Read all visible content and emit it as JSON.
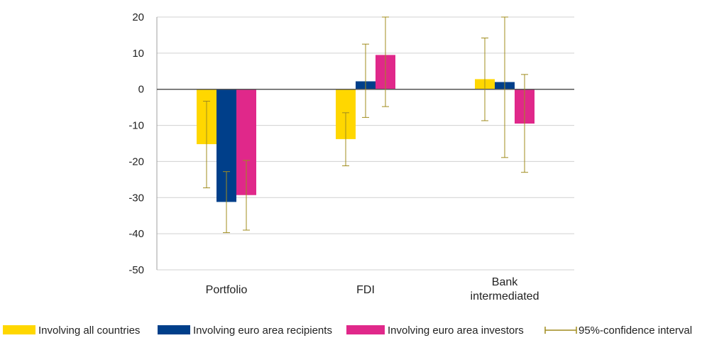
{
  "chart_data": {
    "type": "bar",
    "title": "",
    "xlabel": "",
    "ylabel": "",
    "ylim": [
      -50,
      20
    ],
    "yticks": [
      20,
      10,
      0,
      -10,
      -20,
      -30,
      -40,
      -50
    ],
    "grid": true,
    "legend_position": "bottom",
    "categories": [
      {
        "lines": [
          "Portfolio"
        ]
      },
      {
        "lines": [
          "FDI"
        ]
      },
      {
        "lines": [
          "Bank",
          "intermediated"
        ]
      }
    ],
    "series": [
      {
        "name": "Involving all countries",
        "color": "#FFD700",
        "values": [
          -15.2,
          -13.8,
          2.8
        ],
        "ci_low": [
          -27.3,
          -21.2,
          -8.7
        ],
        "ci_high": [
          -3.3,
          -6.5,
          14.2
        ]
      },
      {
        "name": "Involving euro area recipients",
        "color": "#003F8A",
        "values": [
          -31.2,
          2.2,
          2.0
        ],
        "ci_low": [
          -39.7,
          -7.8,
          -18.9
        ],
        "ci_high": [
          -22.8,
          12.5,
          20.0
        ]
      },
      {
        "name": "Involving euro area investors",
        "color": "#E0288A",
        "values": [
          -29.3,
          9.5,
          -9.5
        ],
        "ci_low": [
          -39.0,
          -4.8,
          -23.0
        ],
        "ci_high": [
          -19.7,
          20.0,
          4.1
        ]
      }
    ],
    "ci_legend": "95%-confidence interval",
    "ci_color": "#A08C1E"
  }
}
